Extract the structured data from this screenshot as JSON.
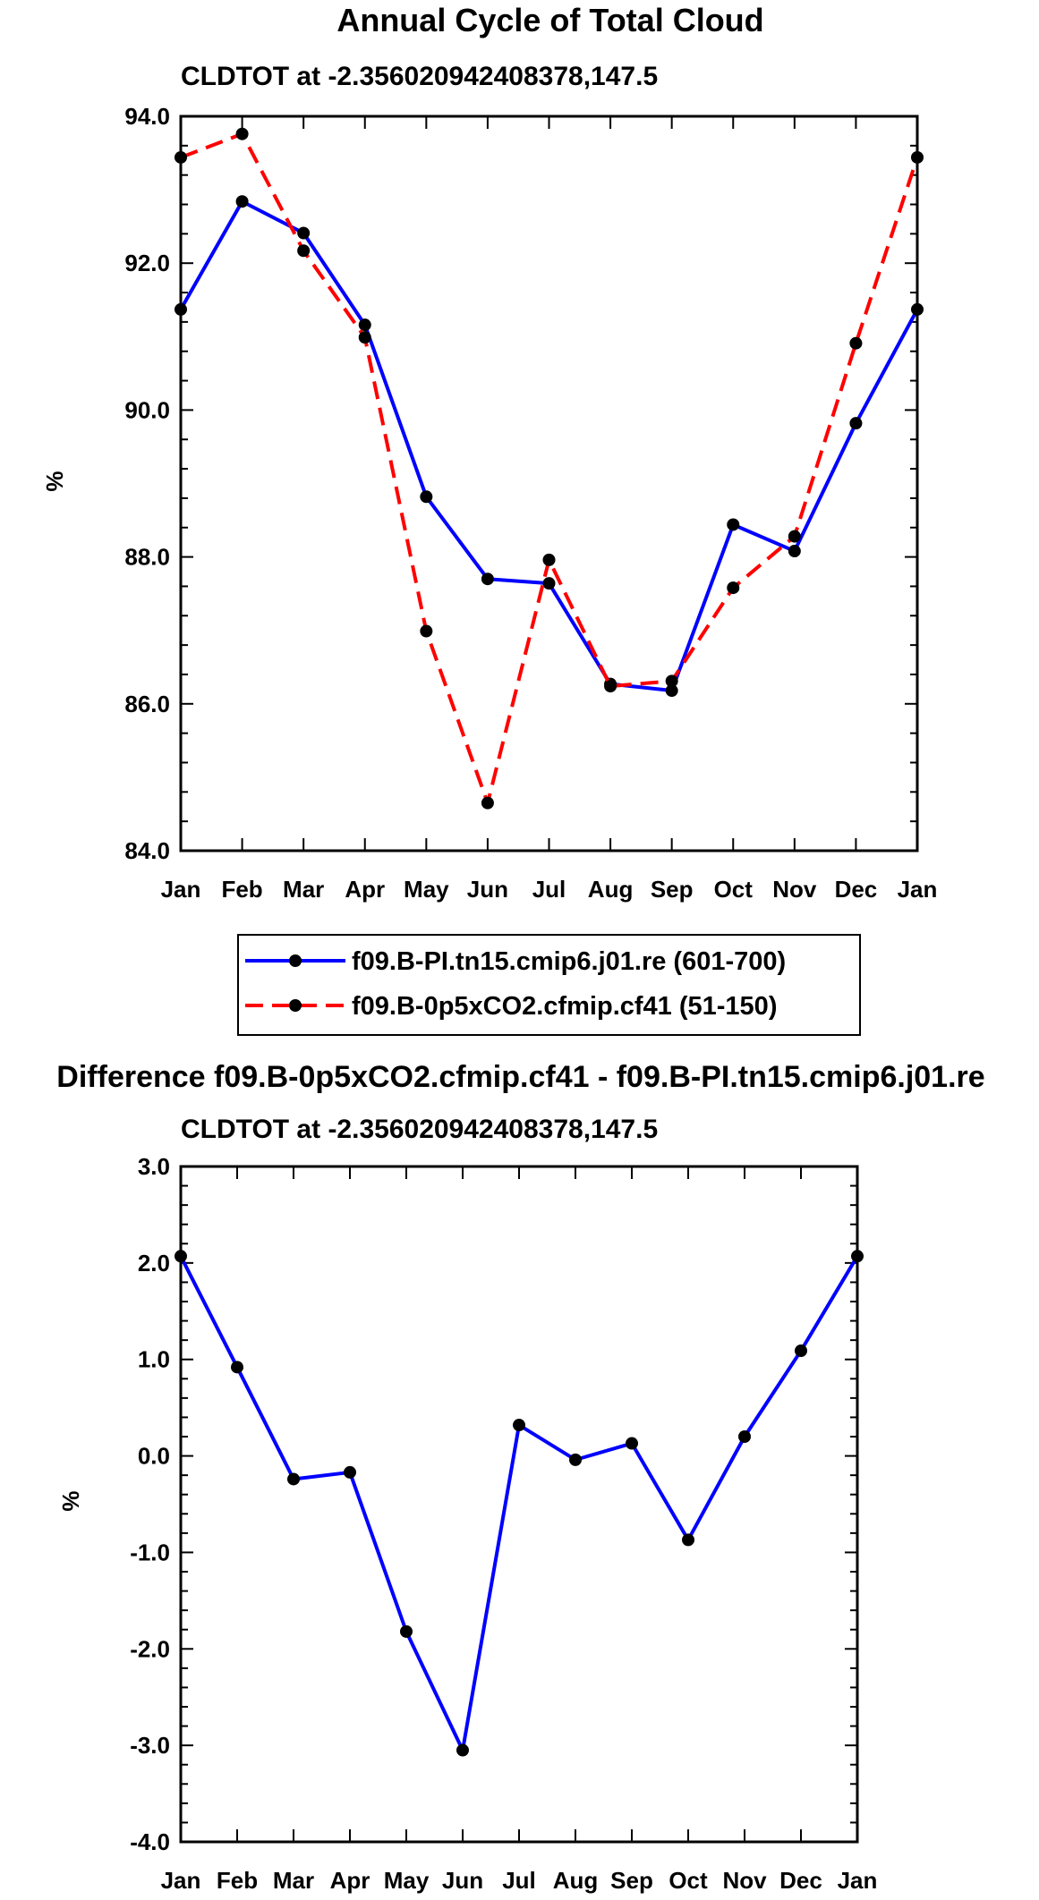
{
  "chart_data": [
    {
      "type": "line",
      "title": "Annual Cycle of Total Cloud",
      "subtitle": "CLDTOT at -2.356020942408378,147.5",
      "xlabel": "",
      "ylabel": "%",
      "categories": [
        "Jan",
        "Feb",
        "Mar",
        "Apr",
        "May",
        "Jun",
        "Jul",
        "Aug",
        "Sep",
        "Oct",
        "Nov",
        "Dec",
        "Jan"
      ],
      "ylim": [
        84.0,
        94.0
      ],
      "yticks": [
        "84.0",
        "86.0",
        "88.0",
        "90.0",
        "92.0",
        "94.0"
      ],
      "grid": false,
      "legend_position": "below",
      "series": [
        {
          "name": "f09.B-PI.tn15.cmip6.j01.re (601-700)",
          "color": "#0000ff",
          "style": "solid",
          "values": [
            91.37,
            92.84,
            92.41,
            91.16,
            88.82,
            87.7,
            87.64,
            86.27,
            86.18,
            88.44,
            88.08,
            89.82,
            91.37
          ]
        },
        {
          "name": "f09.B-0p5xCO2.cfmip.cf41 (51-150)",
          "color": "#ff0000",
          "style": "dashed",
          "values": [
            93.44,
            93.76,
            92.17,
            90.99,
            86.99,
            84.65,
            87.96,
            86.24,
            86.31,
            87.58,
            88.28,
            90.91,
            93.44
          ]
        }
      ]
    },
    {
      "type": "line",
      "title": "Difference f09.B-0p5xCO2.cfmip.cf41 - f09.B-PI.tn15.cmip6.j01.re",
      "subtitle": "CLDTOT at -2.356020942408378,147.5",
      "xlabel": "",
      "ylabel": "%",
      "categories": [
        "Jan",
        "Feb",
        "Mar",
        "Apr",
        "May",
        "Jun",
        "Jul",
        "Aug",
        "Sep",
        "Oct",
        "Nov",
        "Dec",
        "Jan"
      ],
      "ylim": [
        -4.0,
        3.0
      ],
      "yticks": [
        "-4.0",
        "-3.0",
        "-2.0",
        "-1.0",
        "0.0",
        "1.0",
        "2.0",
        "3.0"
      ],
      "grid": false,
      "series": [
        {
          "name": "difference",
          "color": "#0000ff",
          "style": "solid",
          "values": [
            2.07,
            0.92,
            -0.24,
            -0.17,
            -1.82,
            -3.05,
            0.32,
            -0.04,
            0.13,
            -0.87,
            0.2,
            1.09,
            2.07
          ]
        }
      ]
    }
  ]
}
